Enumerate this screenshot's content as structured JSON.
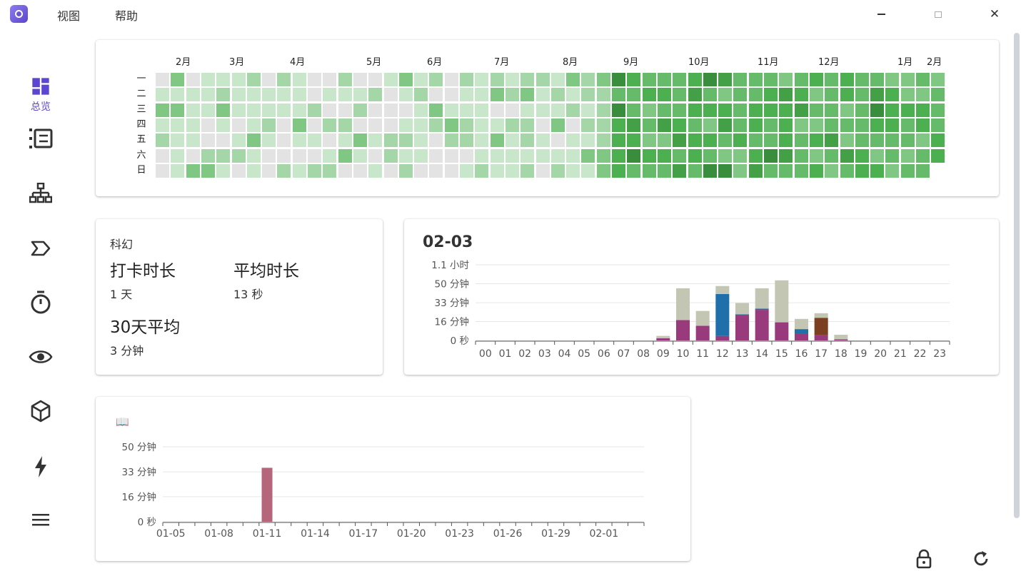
{
  "menu": {
    "view": "视图",
    "help": "帮助"
  },
  "window": {
    "close": "✕"
  },
  "sidebar": {
    "active_label": "总览",
    "items": [
      {
        "icon": "dashboard-icon"
      },
      {
        "icon": "list-icon"
      },
      {
        "icon": "hierarchy-icon"
      },
      {
        "icon": "tag-icon"
      },
      {
        "icon": "timer-icon"
      },
      {
        "icon": "eye-icon"
      },
      {
        "icon": "cube-icon"
      },
      {
        "icon": "lightning-icon"
      },
      {
        "icon": "menu-icon"
      }
    ]
  },
  "heatmap": {
    "months": [
      "2月",
      "3月",
      "4月",
      "5月",
      "6月",
      "7月",
      "8月",
      "9月",
      "10月",
      "11月",
      "12月",
      "1月",
      "2月"
    ],
    "weekdays": [
      "一",
      "二",
      "三",
      "四",
      "五",
      "六",
      "日"
    ],
    "colors": [
      "#e3e3e3",
      "#c8e6c9",
      "#a5d6a7",
      "#81c784",
      "#66bb6a",
      "#4caf50",
      "#43a047",
      "#388e3c"
    ]
  },
  "stats": {
    "category": "科幻",
    "checkin_label": "打卡时长",
    "checkin_value": "1 天",
    "average_label": "平均时长",
    "average_value": "13 秒",
    "avg30_label": "30天平均",
    "avg30_value": "3 分钟"
  },
  "hourly": {
    "title": "02-03",
    "icon": "book-icon",
    "chart_data": {
      "type": "bar",
      "stacked": true,
      "categories": [
        "00",
        "01",
        "02",
        "03",
        "04",
        "05",
        "06",
        "07",
        "08",
        "09",
        "10",
        "11",
        "12",
        "13",
        "14",
        "15",
        "16",
        "17",
        "18",
        "19",
        "20",
        "21",
        "22",
        "23"
      ],
      "ytick_labels": [
        "0 秒",
        "16 分钟",
        "33 分钟",
        "50 分钟",
        "1.1 小时"
      ],
      "ytick_values": [
        0,
        16.7,
        33.3,
        50,
        66.7
      ],
      "ylim": [
        0,
        66.7
      ],
      "series": [
        {
          "color": "#993a7d",
          "values": [
            0,
            0,
            0,
            0,
            0,
            0,
            0,
            0,
            0,
            2,
            18,
            13,
            4,
            22,
            27,
            16,
            6,
            5,
            1,
            0,
            0,
            0,
            0,
            0
          ]
        },
        {
          "color": "#1f6fab",
          "values": [
            0,
            0,
            0,
            0,
            0,
            0,
            0,
            0,
            0,
            0,
            0,
            0,
            37,
            1,
            1,
            0,
            4,
            0,
            0,
            0,
            0,
            0,
            0,
            0
          ]
        },
        {
          "color": "#7b3f22",
          "values": [
            0,
            0,
            0,
            0,
            0,
            0,
            0,
            0,
            0,
            0,
            0,
            0,
            0,
            0,
            0,
            0,
            0,
            15,
            0,
            0,
            0,
            0,
            0,
            0
          ]
        },
        {
          "color": "#c4c6b4",
          "values": [
            0,
            0,
            0,
            0,
            0,
            0,
            0,
            0,
            0,
            2,
            28,
            13,
            7,
            10,
            18,
            37,
            9,
            4,
            4,
            0,
            0,
            0,
            0,
            0
          ]
        }
      ]
    }
  },
  "daily": {
    "icon": "📖",
    "chart_data": {
      "type": "bar",
      "categories": [
        "01-05",
        "01-06",
        "01-07",
        "01-08",
        "01-09",
        "01-10",
        "01-11",
        "01-12",
        "01-13",
        "01-14",
        "01-15",
        "01-16",
        "01-17",
        "01-18",
        "01-19",
        "01-20",
        "01-21",
        "01-22",
        "01-23",
        "01-24",
        "01-25",
        "01-26",
        "01-27",
        "01-28",
        "01-29",
        "01-30",
        "01-31",
        "02-01",
        "02-02",
        "02-03"
      ],
      "xtick_labels": [
        "01-05",
        "01-08",
        "01-11",
        "01-14",
        "01-17",
        "01-20",
        "01-23",
        "01-26",
        "01-29",
        "02-01"
      ],
      "ytick_labels": [
        "0 秒",
        "16 分钟",
        "33 分钟",
        "50 分钟"
      ],
      "ytick_values": [
        0,
        16.7,
        33.3,
        50
      ],
      "ylim": [
        0,
        50
      ],
      "color": "#b5667a",
      "values": [
        0,
        0,
        0,
        0,
        0,
        0,
        36,
        0,
        0,
        0,
        0,
        0,
        0,
        0,
        0,
        0,
        0,
        0,
        0,
        0,
        0,
        0,
        0,
        0,
        0,
        0,
        0,
        0,
        0,
        0
      ]
    }
  }
}
